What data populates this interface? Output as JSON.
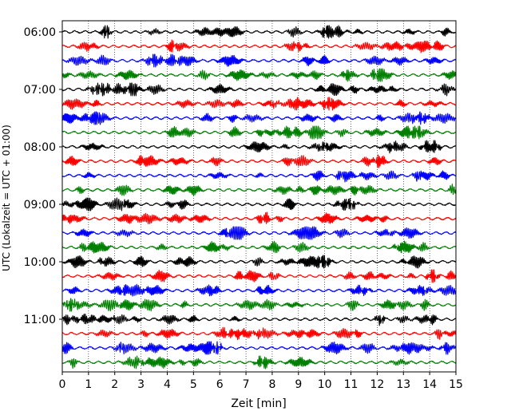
{
  "chart_data": {
    "type": "line",
    "title": "",
    "xlabel": "Zeit  [min]",
    "ylabel": "UTC (Lokalzeit = UTC + 01:00)",
    "xlim": [
      0,
      15
    ],
    "x_ticks": [
      "0",
      "1",
      "2",
      "3",
      "4",
      "5",
      "6",
      "7",
      "8",
      "9",
      "10",
      "11",
      "12",
      "13",
      "14",
      "15"
    ],
    "y_tick_labels": [
      "06:00",
      "07:00",
      "08:00",
      "09:00",
      "10:00",
      "11:00"
    ],
    "y_tick_rows": [
      0,
      4,
      8,
      12,
      16,
      20
    ],
    "grid": "vertical dotted at each minute",
    "trace_colors": [
      "#000000",
      "#ff0000",
      "#0000ff",
      "#008000"
    ],
    "traces": [
      {
        "start": "06:00",
        "color": "#000000"
      },
      {
        "start": "06:15",
        "color": "#ff0000"
      },
      {
        "start": "06:30",
        "color": "#0000ff"
      },
      {
        "start": "06:45",
        "color": "#008000"
      },
      {
        "start": "07:00",
        "color": "#000000"
      },
      {
        "start": "07:15",
        "color": "#ff0000"
      },
      {
        "start": "07:30",
        "color": "#0000ff"
      },
      {
        "start": "07:45",
        "color": "#008000"
      },
      {
        "start": "08:00",
        "color": "#000000"
      },
      {
        "start": "08:15",
        "color": "#ff0000"
      },
      {
        "start": "08:30",
        "color": "#0000ff"
      },
      {
        "start": "08:45",
        "color": "#008000"
      },
      {
        "start": "09:00",
        "color": "#000000"
      },
      {
        "start": "09:15",
        "color": "#ff0000"
      },
      {
        "start": "09:30",
        "color": "#0000ff"
      },
      {
        "start": "09:45",
        "color": "#008000"
      },
      {
        "start": "10:00",
        "color": "#000000"
      },
      {
        "start": "10:15",
        "color": "#ff0000"
      },
      {
        "start": "10:30",
        "color": "#0000ff"
      },
      {
        "start": "10:45",
        "color": "#008000"
      },
      {
        "start": "11:00",
        "color": "#000000"
      },
      {
        "start": "11:15",
        "color": "#ff0000"
      },
      {
        "start": "11:30",
        "color": "#0000ff"
      },
      {
        "start": "11:45",
        "color": "#008000"
      }
    ]
  }
}
